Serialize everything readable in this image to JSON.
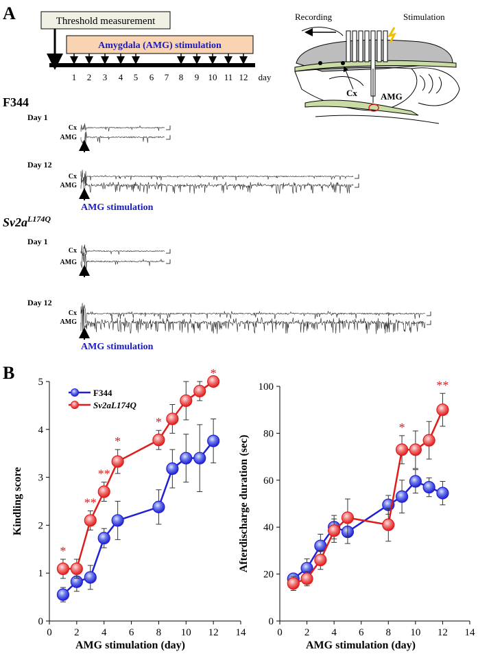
{
  "panel_a": {
    "label": "A",
    "timeline": {
      "threshold": "Threshold measurement",
      "stimulation": "Amygdala (AMG) stimulation",
      "days": [
        "1",
        "2",
        "3",
        "4",
        "5",
        "6",
        "7",
        "8",
        "9",
        "10",
        "11",
        "12"
      ],
      "unit": "day"
    },
    "schematic": {
      "recording": "Recording",
      "stimulation": "Stimulation",
      "cx": "Cx",
      "amg": "AMG"
    },
    "groups": [
      {
        "name": "F344",
        "traces": [
          {
            "day": "Day 1",
            "channels": [
              "Cx",
              "AMG"
            ]
          },
          {
            "day": "Day 12",
            "channels": [
              "Cx",
              "AMG"
            ],
            "marker": "AMG stimulation"
          }
        ]
      },
      {
        "name": "Sv2a",
        "name_superscript": "L174Q",
        "traces": [
          {
            "day": "Day 1",
            "channels": [
              "Cx",
              "AMG"
            ]
          },
          {
            "day": "Day 12",
            "channels": [
              "Cx",
              "AMG"
            ],
            "marker": "AMG stimulation"
          }
        ]
      }
    ]
  },
  "panel_b_label": "B",
  "chart_data": [
    {
      "type": "line",
      "xlabel": "AMG stimulation (day)",
      "ylabel": "Kindling score",
      "x": [
        1,
        2,
        3,
        4,
        5,
        8,
        9,
        10,
        11,
        12
      ],
      "xlim": [
        0,
        14
      ],
      "xticks": [
        0,
        2,
        4,
        6,
        8,
        10,
        12,
        14
      ],
      "ylim": [
        0,
        5
      ],
      "yticks": [
        0,
        1,
        2,
        3,
        4,
        5
      ],
      "legend": "upper left",
      "series": [
        {
          "name": "F344",
          "color": "#1f1fd6",
          "values": [
            0.55,
            0.82,
            0.91,
            1.73,
            2.1,
            2.38,
            3.18,
            3.4,
            3.4,
            3.76
          ],
          "errors": [
            0.15,
            0.2,
            0.25,
            0.2,
            0.4,
            0.36,
            0.4,
            0.5,
            0.7,
            0.46
          ]
        },
        {
          "name": "Sv2aL174Q",
          "color": "#e01b1b",
          "values": [
            1.09,
            1.09,
            2.1,
            2.7,
            3.33,
            3.78,
            4.22,
            4.6,
            4.8,
            5.0
          ],
          "errors": [
            0.2,
            0.2,
            0.2,
            0.2,
            0.25,
            0.2,
            0.3,
            0.4,
            0.2,
            0.0
          ],
          "significance": [
            "*",
            null,
            "**",
            "**",
            "*",
            "*",
            null,
            null,
            null,
            "*"
          ]
        }
      ]
    },
    {
      "type": "line",
      "xlabel": "AMG stimulation (day)",
      "ylabel": "Afterdischarge duration (sec)",
      "x": [
        1,
        2,
        3,
        4,
        5,
        8,
        9,
        10,
        11,
        12
      ],
      "xlim": [
        0,
        14
      ],
      "xticks": [
        0,
        2,
        4,
        6,
        8,
        10,
        12,
        14
      ],
      "ylim": [
        0,
        100
      ],
      "yticks": [
        0,
        20,
        40,
        60,
        80,
        100
      ],
      "series": [
        {
          "color": "#1f1fd6",
          "values": [
            18,
            22.5,
            32,
            40,
            38,
            49.5,
            53,
            59.5,
            57,
            54.5
          ],
          "errors": [
            2,
            4,
            5,
            5,
            5,
            4,
            7,
            5,
            4,
            5
          ]
        },
        {
          "color": "#e01b1b",
          "values": [
            16,
            18,
            26,
            38.5,
            44,
            41,
            73,
            73,
            77,
            90
          ],
          "errors": [
            3,
            3,
            4,
            5,
            8,
            7,
            6,
            8,
            8,
            7
          ],
          "significance": [
            null,
            null,
            null,
            null,
            null,
            null,
            "*",
            null,
            null,
            "**"
          ]
        }
      ]
    }
  ]
}
